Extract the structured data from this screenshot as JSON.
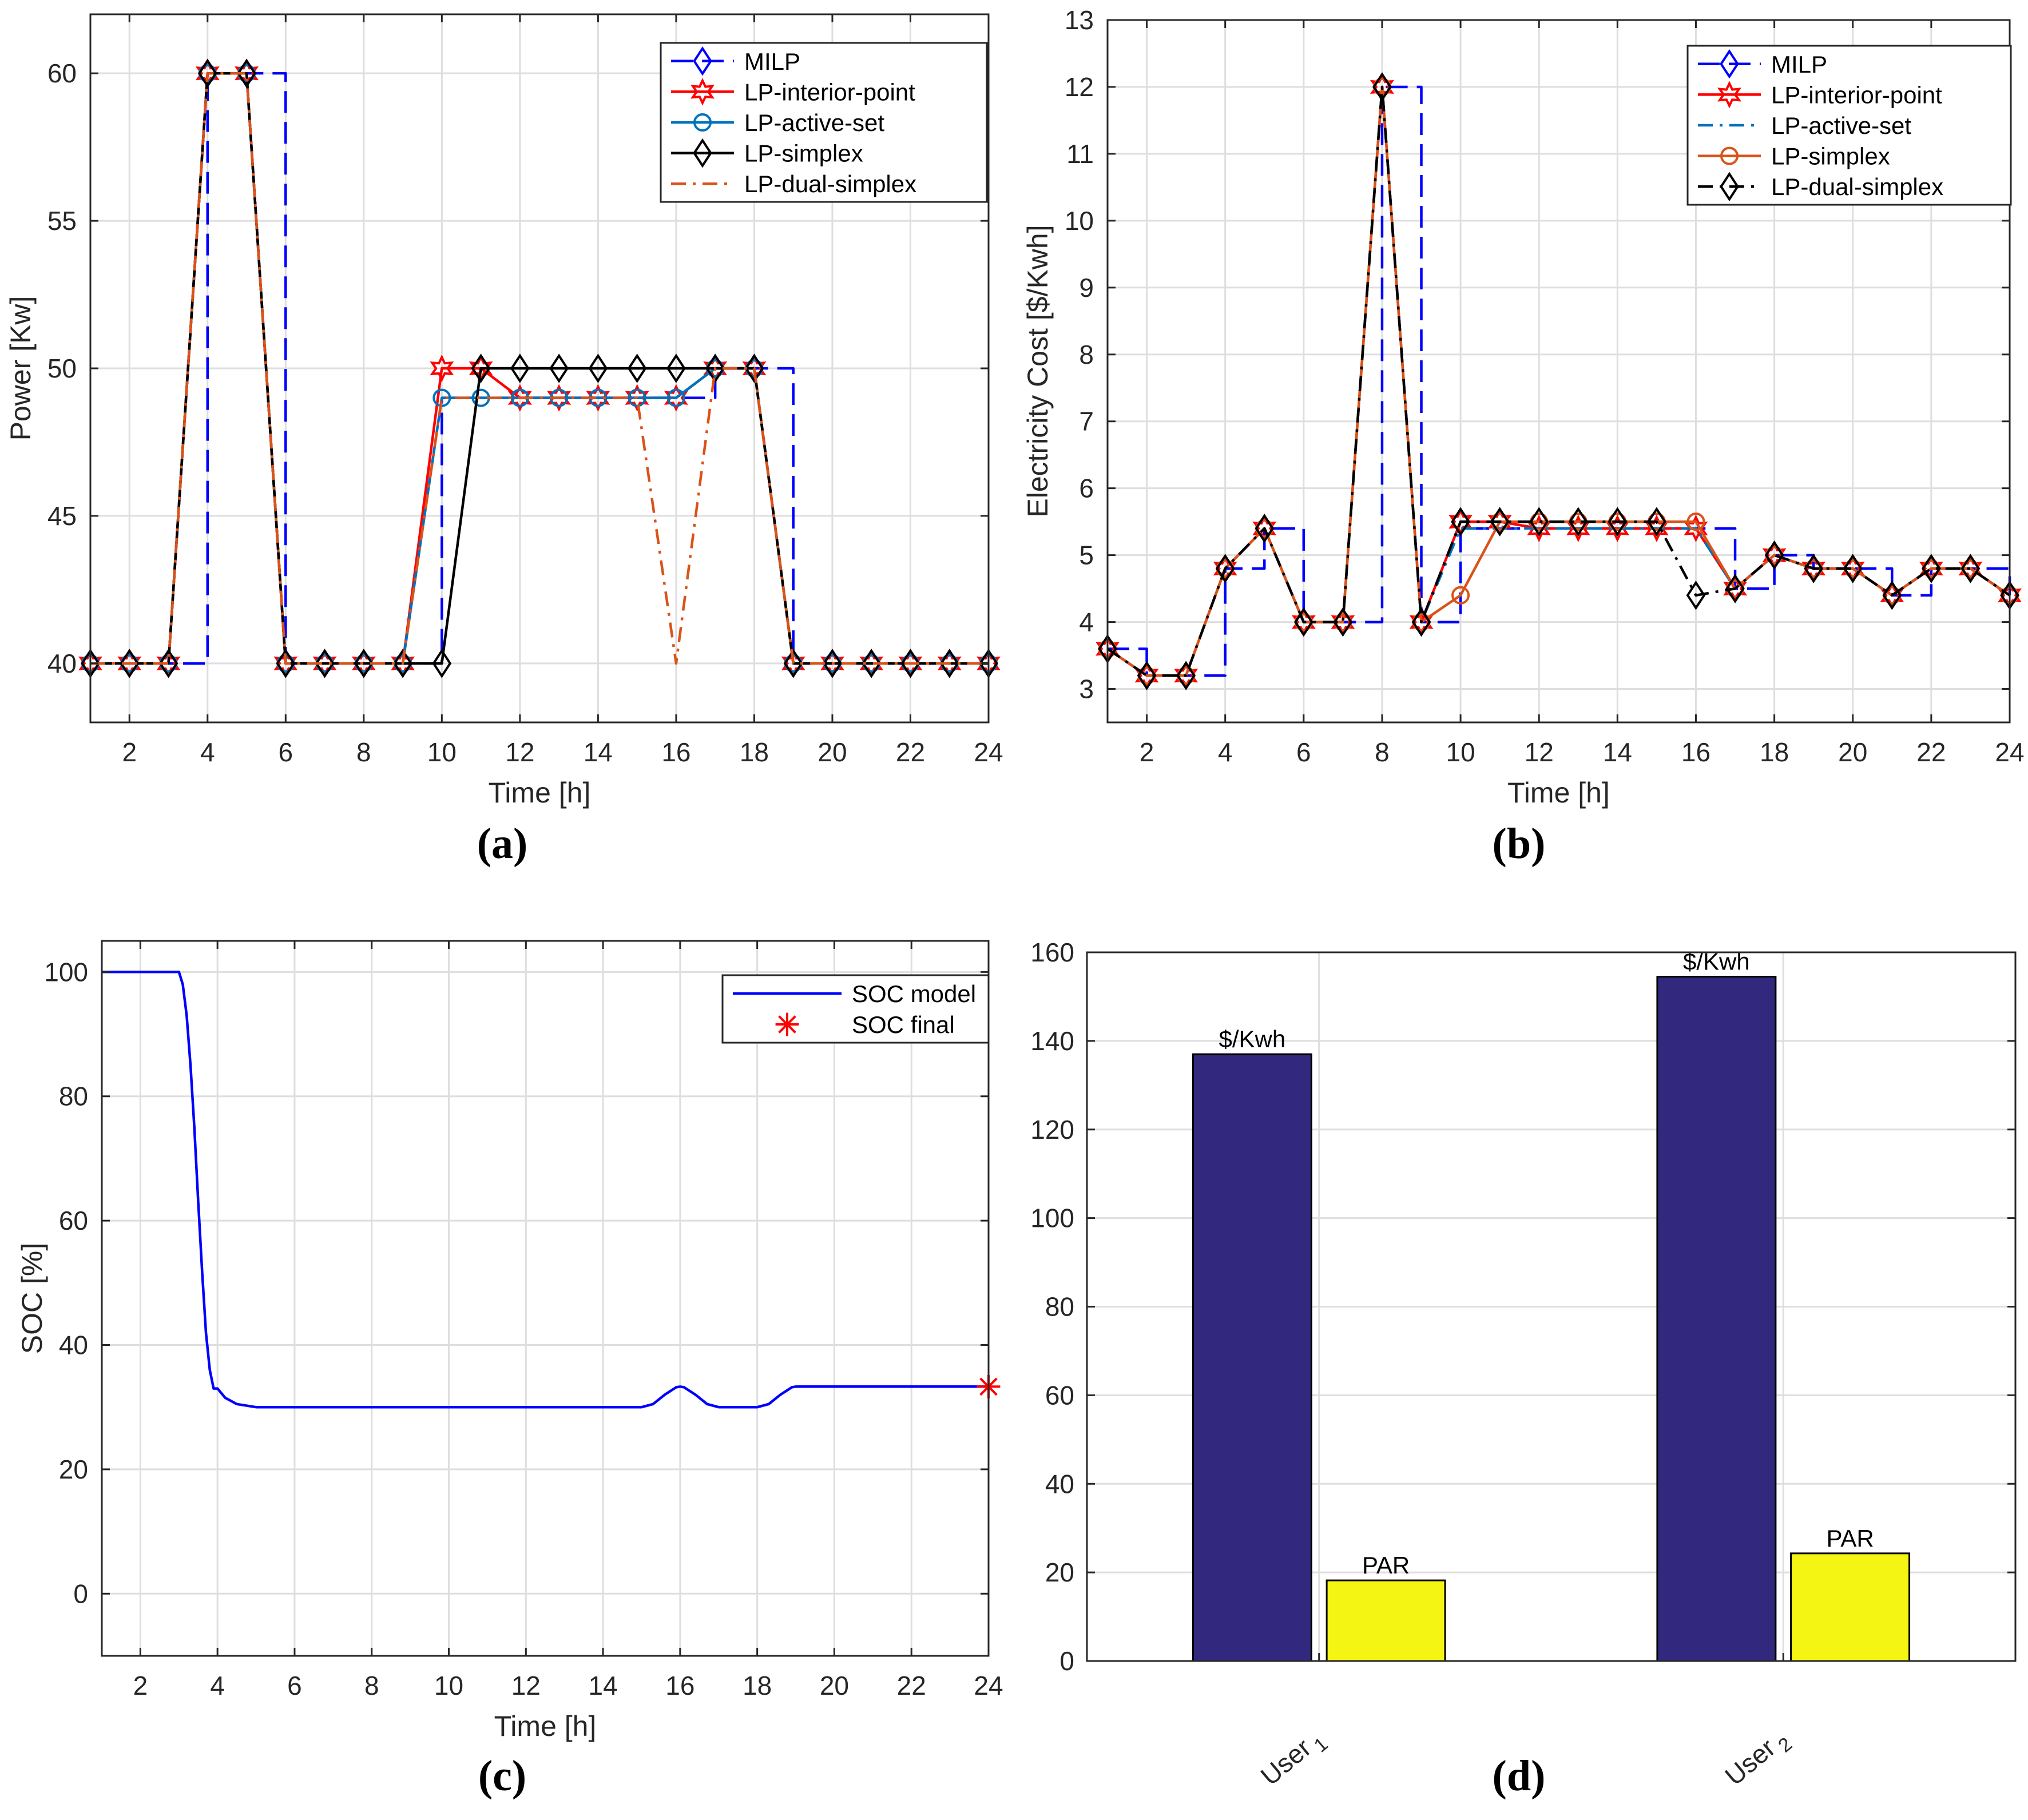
{
  "chart_data": [
    {
      "panel": "a",
      "type": "line",
      "caption": "(a)",
      "xlabel": "Time [h]",
      "ylabel": "Power [Kw]",
      "xlim": [
        1,
        24
      ],
      "ylim": [
        38,
        62
      ],
      "xticks": [
        2,
        4,
        6,
        8,
        10,
        12,
        14,
        16,
        18,
        20,
        22,
        24
      ],
      "yticks": [
        40,
        45,
        50,
        55,
        60
      ],
      "grid": true,
      "legend_position": "top-right",
      "x": [
        1,
        2,
        3,
        4,
        5,
        6,
        7,
        8,
        9,
        10,
        11,
        12,
        13,
        14,
        15,
        16,
        17,
        18,
        19,
        20,
        21,
        22,
        23,
        24
      ],
      "series": [
        {
          "name": "MILP",
          "style": "dashed",
          "marker": "diamond",
          "step": true,
          "show_markers": false,
          "color": "#0000ff",
          "values": [
            40,
            40,
            40,
            60,
            60,
            40,
            40,
            40,
            40,
            49,
            49,
            49,
            49,
            49,
            49,
            49,
            50,
            50,
            40,
            40,
            40,
            40,
            40,
            40
          ]
        },
        {
          "name": "LP-interior-point",
          "style": "solid",
          "marker": "hexagram",
          "color": "#ff0000",
          "values": [
            40,
            40,
            40,
            60,
            60,
            40,
            40,
            40,
            40,
            50,
            50,
            49,
            49,
            49,
            49,
            49,
            50,
            50,
            40,
            40,
            40,
            40,
            40,
            40
          ]
        },
        {
          "name": "LP-active-set",
          "style": "solid",
          "marker": "circle",
          "color": "#0072bd",
          "values": [
            40,
            40,
            40,
            60,
            60,
            40,
            40,
            40,
            40,
            49,
            49,
            49,
            49,
            49,
            49,
            49,
            50,
            50,
            40,
            40,
            40,
            40,
            40,
            40
          ]
        },
        {
          "name": "LP-simplex",
          "style": "solid",
          "marker": "diamond",
          "color": "#000000",
          "values": [
            40,
            40,
            40,
            60,
            60,
            40,
            40,
            40,
            40,
            40,
            50,
            50,
            50,
            50,
            50,
            50,
            50,
            50,
            40,
            40,
            40,
            40,
            40,
            40
          ]
        },
        {
          "name": "LP-dual-simplex",
          "style": "dashdot",
          "marker": "none",
          "color": "#d95319",
          "values": [
            40,
            40,
            40,
            60,
            60,
            40,
            40,
            40,
            40,
            49,
            49,
            49,
            49,
            49,
            49,
            40,
            50,
            50,
            40,
            40,
            40,
            40,
            40,
            40
          ]
        }
      ]
    },
    {
      "panel": "b",
      "type": "line",
      "caption": "(b)",
      "xlabel": "Time [h]",
      "ylabel": "Electricity Cost [$/Kwh]",
      "xlim": [
        1,
        24
      ],
      "ylim": [
        2.5,
        13
      ],
      "xticks": [
        2,
        4,
        6,
        8,
        10,
        12,
        14,
        16,
        18,
        20,
        22,
        24
      ],
      "yticks": [
        3,
        4,
        5,
        6,
        7,
        8,
        9,
        10,
        11,
        12,
        13
      ],
      "grid": true,
      "legend_position": "top-right",
      "x": [
        1,
        2,
        3,
        4,
        5,
        6,
        7,
        8,
        9,
        10,
        11,
        12,
        13,
        14,
        15,
        16,
        17,
        18,
        19,
        20,
        21,
        22,
        23,
        24
      ],
      "series": [
        {
          "name": "MILP",
          "style": "dashed",
          "marker": "diamond",
          "step": true,
          "show_markers": false,
          "color": "#0000ff",
          "values": [
            3.6,
            3.2,
            3.2,
            4.8,
            5.4,
            4.0,
            4.0,
            12.0,
            4.0,
            5.4,
            5.4,
            5.4,
            5.4,
            5.4,
            5.4,
            5.4,
            4.5,
            5.0,
            4.8,
            4.8,
            4.4,
            4.8,
            4.8,
            4.4
          ]
        },
        {
          "name": "LP-interior-point",
          "style": "solid",
          "marker": "hexagram",
          "color": "#ff0000",
          "values": [
            3.6,
            3.2,
            3.2,
            4.8,
            5.4,
            4.0,
            4.0,
            12.0,
            4.0,
            5.5,
            5.5,
            5.4,
            5.4,
            5.4,
            5.4,
            5.4,
            4.5,
            5.0,
            4.8,
            4.8,
            4.4,
            4.8,
            4.8,
            4.4
          ]
        },
        {
          "name": "LP-active-set",
          "style": "dashdot",
          "marker": "none",
          "color": "#0072bd",
          "values": [
            3.6,
            3.2,
            3.2,
            4.8,
            5.4,
            4.0,
            4.0,
            12.0,
            4.0,
            5.4,
            5.4,
            5.4,
            5.4,
            5.4,
            5.4,
            5.4,
            4.5,
            5.0,
            4.8,
            4.8,
            4.4,
            4.8,
            4.8,
            4.4
          ]
        },
        {
          "name": "LP-simplex",
          "style": "solid",
          "marker": "circle",
          "color": "#d95319",
          "values": [
            3.6,
            3.2,
            3.2,
            4.8,
            5.4,
            4.0,
            4.0,
            12.0,
            4.0,
            4.4,
            5.5,
            5.5,
            5.5,
            5.5,
            5.5,
            5.5,
            4.5,
            5.0,
            4.8,
            4.8,
            4.4,
            4.8,
            4.8,
            4.4
          ]
        },
        {
          "name": "LP-dual-simplex",
          "style": "dashdot",
          "marker": "diamond",
          "color": "#000000",
          "values": [
            3.6,
            3.2,
            3.2,
            4.8,
            5.4,
            4.0,
            4.0,
            12.0,
            4.0,
            5.5,
            5.5,
            5.5,
            5.5,
            5.5,
            5.5,
            4.4,
            4.5,
            5.0,
            4.8,
            4.8,
            4.4,
            4.8,
            4.8,
            4.4
          ]
        }
      ]
    },
    {
      "panel": "c",
      "type": "line",
      "caption": "(c)",
      "xlabel": "Time [h]",
      "ylabel": "SOC [%]",
      "xlim": [
        1,
        24
      ],
      "ylim": [
        -10,
        105
      ],
      "xticks": [
        2,
        4,
        6,
        8,
        10,
        12,
        14,
        16,
        18,
        20,
        22,
        24
      ],
      "yticks": [
        0,
        20,
        40,
        60,
        80,
        100
      ],
      "grid": true,
      "legend_position": "top-right",
      "series": [
        {
          "name": "SOC model",
          "style": "solid",
          "marker": "none",
          "color": "#0000ff",
          "x": [
            1,
            2,
            3,
            3.1,
            3.2,
            3.3,
            3.4,
            3.5,
            3.6,
            3.7,
            3.8,
            3.9,
            4,
            4.2,
            4.5,
            5,
            6,
            8,
            10,
            12,
            14,
            15,
            15.3,
            15.6,
            15.9,
            16,
            16.1,
            16.4,
            16.7,
            17,
            17.5,
            18,
            18.3,
            18.6,
            18.9,
            19,
            20,
            22,
            24
          ],
          "values": [
            100,
            100,
            100,
            98,
            93,
            85,
            75,
            63,
            52,
            42,
            36,
            33,
            33,
            31.5,
            30.5,
            30,
            30,
            30,
            30,
            30,
            30,
            30,
            30.5,
            32,
            33.2,
            33.3,
            33.2,
            32,
            30.5,
            30,
            30,
            30,
            30.5,
            32,
            33.2,
            33.3,
            33.3,
            33.3,
            33.3
          ]
        },
        {
          "name": "SOC final",
          "style": "none",
          "marker": "asterisk",
          "color": "#ff0000",
          "x": [
            24
          ],
          "values": [
            33.3
          ]
        }
      ]
    },
    {
      "panel": "d",
      "type": "bar",
      "caption": "(d)",
      "categories": [
        "User",
        "User"
      ],
      "category_subscripts": [
        "1",
        "2"
      ],
      "ylim": [
        0,
        160
      ],
      "yticks": [
        0,
        20,
        40,
        60,
        80,
        100,
        120,
        140,
        160
      ],
      "grid": true,
      "series": [
        {
          "name": "$/Kwh",
          "label": "$/Kwh",
          "color": "#32297e",
          "values": [
            137,
            154.5
          ]
        },
        {
          "name": "PAR",
          "label": "PAR",
          "color": "#f5f514",
          "values": [
            18.2,
            24.3
          ]
        }
      ]
    }
  ]
}
